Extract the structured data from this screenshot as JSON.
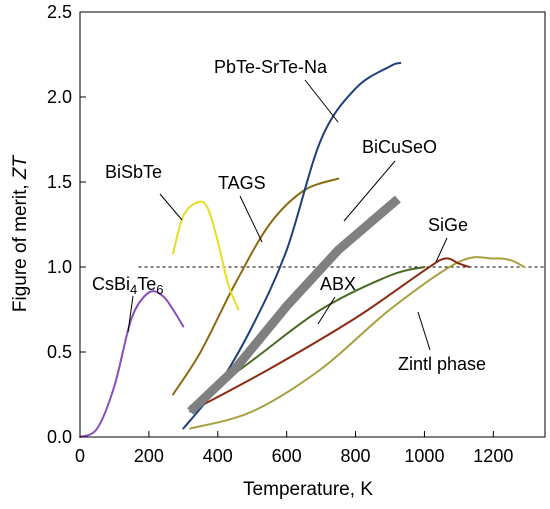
{
  "chart_data": {
    "type": "line",
    "xlabel": "Temperature, K",
    "ylabel_prefix": "Figure of merit, ",
    "ylabel_symbol": "ZT",
    "xlim": [
      0,
      1350
    ],
    "ylim": [
      0,
      2.5
    ],
    "xticks": [
      0,
      200,
      400,
      600,
      800,
      1000,
      1200
    ],
    "yticks": [
      0.0,
      0.5,
      1.0,
      1.5,
      2.0,
      2.5
    ],
    "ytick_labels": [
      "0.0",
      "0.5",
      "1.0",
      "1.5",
      "2.0",
      "2.5"
    ],
    "reference_line": {
      "y": 1.0,
      "style": "dashed"
    },
    "grid": false,
    "series": [
      {
        "key": "csbi4te6",
        "name": "CsBi4Te6",
        "label_parts": [
          {
            "text": "CsBi",
            "sub": false
          },
          {
            "text": "4",
            "sub": true
          },
          {
            "text": "Te",
            "sub": false
          },
          {
            "text": "6",
            "sub": true
          }
        ],
        "color": "#8a4dbd",
        "x": [
          0,
          50,
          100,
          150,
          200,
          240,
          270,
          300
        ],
        "y": [
          0.0,
          0.05,
          0.3,
          0.7,
          0.85,
          0.83,
          0.75,
          0.65
        ]
      },
      {
        "key": "bisbte",
        "name": "BiSbTe",
        "color": "#e6df1f",
        "x": [
          270,
          300,
          340,
          370,
          400,
          430,
          460
        ],
        "y": [
          1.08,
          1.3,
          1.38,
          1.35,
          1.15,
          0.9,
          0.75
        ]
      },
      {
        "key": "pbte",
        "name": "PbTe-SrTe-Na",
        "color": "#1f3f7a",
        "x": [
          300,
          400,
          500,
          600,
          700,
          800,
          900,
          930
        ],
        "y": [
          0.05,
          0.3,
          0.65,
          1.1,
          1.75,
          2.05,
          2.18,
          2.2
        ]
      },
      {
        "key": "tags",
        "name": "TAGS",
        "color": "#8b6a12",
        "x": [
          270,
          350,
          450,
          550,
          650,
          750
        ],
        "y": [
          0.25,
          0.5,
          0.9,
          1.25,
          1.45,
          1.52
        ]
      },
      {
        "key": "bicuseo",
        "name": "BiCuSeO",
        "color": "#808080",
        "x": [
          320,
          450,
          600,
          750,
          923
        ],
        "y": [
          0.15,
          0.4,
          0.77,
          1.1,
          1.4
        ]
      },
      {
        "key": "abx",
        "name": "ABX",
        "color": "#4a6a25",
        "x": [
          320,
          500,
          700,
          900,
          1000
        ],
        "y": [
          0.18,
          0.45,
          0.75,
          0.95,
          1.0
        ]
      },
      {
        "key": "sige",
        "name": "SiGe",
        "color": "#8b2b10",
        "x": [
          320,
          550,
          800,
          1000,
          1060,
          1100,
          1130
        ],
        "y": [
          0.15,
          0.4,
          0.7,
          0.98,
          1.05,
          1.02,
          1.0
        ]
      },
      {
        "key": "zintl",
        "name": "Zintl phase",
        "color": "#a8a040",
        "x": [
          320,
          500,
          700,
          900,
          1100,
          1200,
          1250,
          1290
        ],
        "y": [
          0.05,
          0.15,
          0.4,
          0.75,
          1.03,
          1.05,
          1.04,
          1.0
        ]
      }
    ],
    "annotations": [
      {
        "text": "CsBi4Te6",
        "series": "csbi4te6"
      },
      {
        "text": "BiSbTe",
        "series": "bisbte"
      },
      {
        "text": "PbTe-SrTe-Na",
        "series": "pbte"
      },
      {
        "text": "TAGS",
        "series": "tags"
      },
      {
        "text": "BiCuSeO",
        "series": "bicuseo"
      },
      {
        "text": "SiGe",
        "series": "sige"
      },
      {
        "text": "ABX",
        "series": "abx"
      },
      {
        "text": "Zintl phase",
        "series": "zintl"
      }
    ]
  }
}
